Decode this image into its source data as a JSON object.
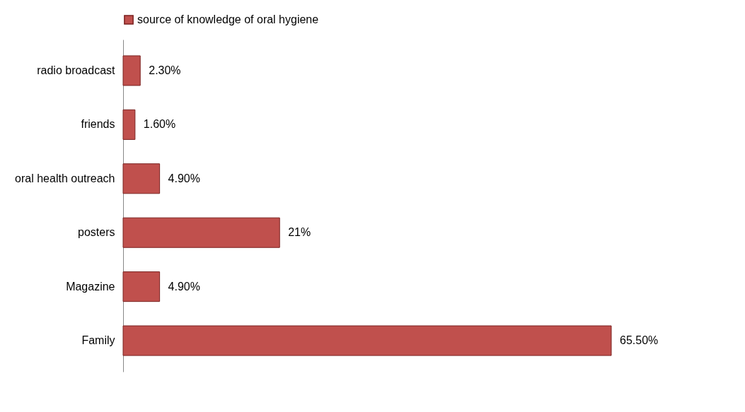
{
  "chart_data": {
    "type": "bar",
    "orientation": "horizontal",
    "categories": [
      "radio broadcast",
      "friends",
      "oral health outreach",
      "posters",
      "Magazine",
      "Family"
    ],
    "series": [
      {
        "name": "source of knowledge of oral hygiene",
        "color": "#c0504d",
        "values": [
          2.3,
          1.6,
          4.9,
          21,
          4.9,
          65.5
        ],
        "value_labels": [
          "2.30%",
          "1.60%",
          "4.90%",
          "21%",
          "4.90%",
          "65.50%"
        ]
      }
    ],
    "legend": "top",
    "grid": false
  }
}
